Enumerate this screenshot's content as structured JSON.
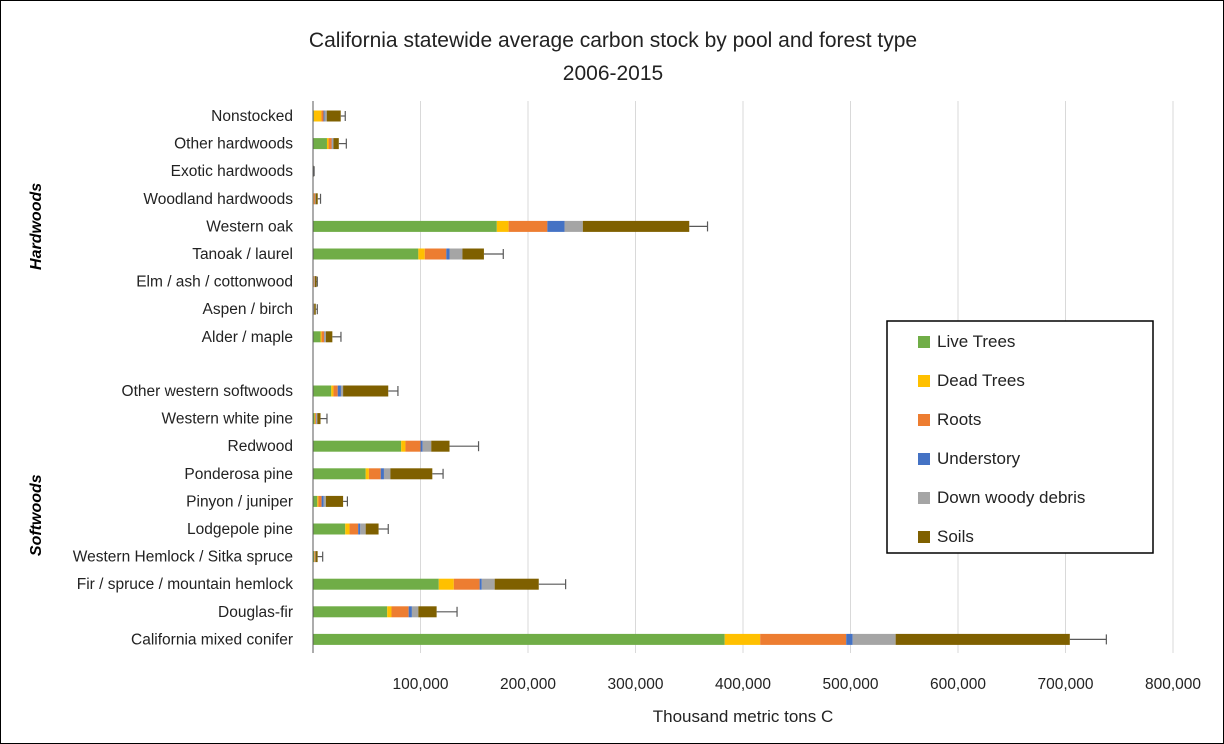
{
  "chart_data": {
    "type": "bar",
    "orientation": "horizontal",
    "stacked": true,
    "title": "California statewide average carbon stock by pool and forest type",
    "subtitle": "2006-2015",
    "xlabel": "Thousand metric tons C",
    "ylabel": "",
    "xlim": [
      0,
      800000
    ],
    "x_ticks": [
      100000,
      200000,
      300000,
      400000,
      500000,
      600000,
      700000,
      800000
    ],
    "x_tick_labels": [
      "100,000",
      "200,000",
      "300,000",
      "400,000",
      "500,000",
      "600,000",
      "700,000",
      "800,000"
    ],
    "grid": "vertical",
    "legend_position": "right",
    "groups": [
      {
        "label": "Hardwoods",
        "categories": [
          "Nonstocked",
          "Other hardwoods",
          "Exotic hardwoods",
          "Woodland hardwoods",
          "Western oak",
          "Tanoak / laurel",
          "Elm / ash / cottonwood",
          "Aspen / birch",
          "Alder / maple"
        ]
      },
      {
        "label": "Softwoods",
        "categories": [
          "Other western softwoods",
          "Western white pine",
          "Redwood",
          "Ponderosa pine",
          "Pinyon / juniper",
          "Lodgepole pine",
          "Western Hemlock / Sitka spruce",
          "Fir / spruce / mountain hemlock",
          "Douglas-fir",
          "California mixed conifer"
        ]
      }
    ],
    "categories": [
      "Nonstocked",
      "Other hardwoods",
      "Exotic hardwoods",
      "Woodland hardwoods",
      "Western oak",
      "Tanoak / laurel",
      "Elm / ash / cottonwood",
      "Aspen / birch",
      "Alder / maple",
      "Other western softwoods",
      "Western white pine",
      "Redwood",
      "Ponderosa pine",
      "Pinyon / juniper",
      "Lodgepole pine",
      "Western Hemlock / Sitka spruce",
      "Fir / spruce / mountain hemlock",
      "Douglas-fir",
      "California mixed conifer"
    ],
    "series": [
      {
        "name": "Live Trees",
        "color": "#70ad47",
        "values": [
          800,
          13000,
          300,
          500,
          171000,
          98000,
          500,
          300,
          7000,
          17000,
          1500,
          82000,
          49000,
          4000,
          30000,
          1000,
          117000,
          69000,
          383000
        ]
      },
      {
        "name": "Dead Trees",
        "color": "#ffc000",
        "values": [
          7000,
          1500,
          100,
          300,
          11000,
          6000,
          200,
          100,
          1000,
          2000,
          500,
          4000,
          3000,
          1000,
          4000,
          300,
          14000,
          4000,
          33000
        ]
      },
      {
        "name": "Roots",
        "color": "#ed7d31",
        "values": [
          2000,
          3000,
          100,
          1000,
          36000,
          20000,
          600,
          300,
          2500,
          4000,
          1000,
          14000,
          11000,
          3000,
          8000,
          500,
          24000,
          16000,
          80000
        ]
      },
      {
        "name": "Understory",
        "color": "#4472c4",
        "values": [
          1000,
          500,
          100,
          300,
          16000,
          3000,
          200,
          200,
          500,
          3000,
          500,
          2000,
          3000,
          2000,
          2000,
          200,
          2000,
          3000,
          6000
        ]
      },
      {
        "name": "Down woody debris",
        "color": "#a5a5a5",
        "values": [
          2000,
          1000,
          100,
          300,
          17000,
          12000,
          300,
          200,
          1000,
          2000,
          500,
          8000,
          6000,
          2000,
          5000,
          300,
          12000,
          6000,
          40000
        ]
      },
      {
        "name": "Soils",
        "color": "#7f6000",
        "values": [
          13000,
          5000,
          200,
          2000,
          99000,
          20000,
          1500,
          1500,
          6000,
          42000,
          3000,
          17000,
          39000,
          16000,
          12000,
          2000,
          41000,
          17000,
          162000
        ]
      }
    ],
    "error_bar_upper": [
      30000,
      31000,
      1000,
      7000,
      367000,
      177000,
      4000,
      4000,
      26000,
      79000,
      13000,
      154000,
      121000,
      32000,
      70000,
      9000,
      235000,
      134000,
      738000
    ]
  }
}
